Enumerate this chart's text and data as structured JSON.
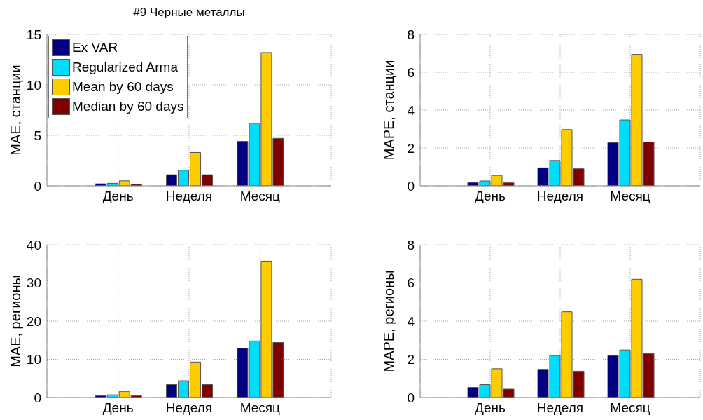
{
  "chart_data": [
    {
      "type": "bar",
      "title": "#9 Черные металлы",
      "ylabel": "MAE, станции",
      "categories": [
        "День",
        "Неделя",
        "Месяц"
      ],
      "ylim": [
        0,
        15
      ],
      "yticks": [
        0,
        5,
        10,
        15
      ],
      "grid": true,
      "legend": "top left",
      "series": [
        {
          "name": "Ex VAR",
          "color": "#000080",
          "values": [
            0.2,
            1.1,
            4.4
          ]
        },
        {
          "name": "Regularized Arma",
          "color": "#00ddfa",
          "values": [
            0.25,
            1.55,
            6.2
          ]
        },
        {
          "name": "Mean by 60 days",
          "color": "#ffcc00",
          "values": [
            0.5,
            3.3,
            13.2
          ]
        },
        {
          "name": "Median by 60 days",
          "color": "#800000",
          "values": [
            0.15,
            1.1,
            4.7
          ]
        }
      ]
    },
    {
      "type": "bar",
      "ylabel": "MAPE, станции",
      "categories": [
        "День",
        "Неделя",
        "Месяц"
      ],
      "ylim": [
        0,
        8
      ],
      "yticks": [
        0,
        2,
        4,
        6,
        8
      ],
      "grid": true,
      "series": [
        {
          "color": "#000080",
          "values": [
            0.18,
            0.95,
            2.29
          ]
        },
        {
          "color": "#00ddfa",
          "values": [
            0.26,
            1.34,
            3.48
          ]
        },
        {
          "color": "#ffcc00",
          "values": [
            0.55,
            2.97,
            6.94
          ]
        },
        {
          "color": "#800000",
          "values": [
            0.16,
            0.9,
            2.31
          ]
        }
      ]
    },
    {
      "type": "bar",
      "ylabel": "MAE, регионы",
      "categories": [
        "День",
        "Неделя",
        "Месяц"
      ],
      "ylim": [
        0,
        40
      ],
      "yticks": [
        0,
        10,
        20,
        30,
        40
      ],
      "grid": true,
      "series": [
        {
          "color": "#000080",
          "values": [
            0.5,
            3.4,
            12.9
          ]
        },
        {
          "color": "#00ddfa",
          "values": [
            0.7,
            4.4,
            14.8
          ]
        },
        {
          "color": "#ffcc00",
          "values": [
            1.6,
            9.3,
            35.7
          ]
        },
        {
          "color": "#800000",
          "values": [
            0.5,
            3.4,
            14.4
          ]
        }
      ]
    },
    {
      "type": "bar",
      "ylabel": "MAPE, регионы",
      "categories": [
        "День",
        "Неделя",
        "Месяц"
      ],
      "ylim": [
        0,
        8
      ],
      "yticks": [
        0,
        2,
        4,
        6,
        8
      ],
      "grid": true,
      "series": [
        {
          "color": "#000080",
          "values": [
            0.53,
            1.48,
            2.2
          ]
        },
        {
          "color": "#00ddfa",
          "values": [
            0.68,
            2.2,
            2.49
          ]
        },
        {
          "color": "#ffcc00",
          "values": [
            1.51,
            4.49,
            6.19
          ]
        },
        {
          "color": "#800000",
          "values": [
            0.44,
            1.38,
            2.3
          ]
        }
      ]
    }
  ]
}
